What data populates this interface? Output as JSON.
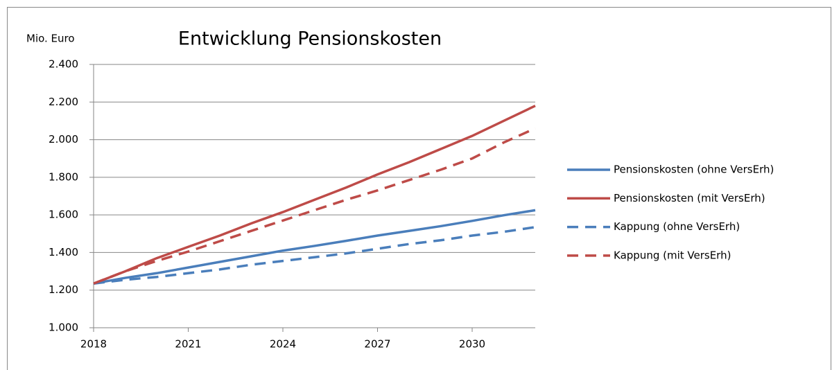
{
  "chart_data": {
    "type": "line",
    "title": "Entwicklung Pensionskosten",
    "y_label": "Mio. Euro",
    "x": [
      2018,
      2019,
      2020,
      2021,
      2022,
      2023,
      2024,
      2025,
      2026,
      2027,
      2028,
      2029,
      2030,
      2031,
      2032
    ],
    "series": [
      {
        "name": "Pensionskosten (ohne VersErh)",
        "color": "#4a7ebb",
        "dash": false,
        "values": [
          1235,
          1265,
          1290,
          1320,
          1350,
          1380,
          1410,
          1435,
          1462,
          1490,
          1515,
          1540,
          1568,
          1598,
          1625
        ]
      },
      {
        "name": "Pensionskosten (mit VersErh)",
        "color": "#be4b48",
        "dash": false,
        "values": [
          1235,
          1300,
          1370,
          1430,
          1490,
          1555,
          1615,
          1680,
          1745,
          1815,
          1880,
          1950,
          2020,
          2100,
          2180
        ]
      },
      {
        "name": "Kappung (ohne VersErh)",
        "color": "#4a7ebb",
        "dash": true,
        "values": [
          1235,
          1255,
          1270,
          1290,
          1310,
          1335,
          1355,
          1375,
          1395,
          1420,
          1445,
          1465,
          1490,
          1510,
          1535
        ]
      },
      {
        "name": "Kappung (mit VersErh)",
        "color": "#be4b48",
        "dash": true,
        "values": [
          1235,
          1300,
          1355,
          1405,
          1460,
          1515,
          1570,
          1625,
          1680,
          1730,
          1785,
          1840,
          1900,
          1985,
          2060
        ]
      }
    ],
    "xlim": [
      2018,
      2032
    ],
    "xticks": [
      2018,
      2021,
      2024,
      2027,
      2030
    ],
    "ylim": [
      1000,
      2400
    ],
    "yticks": [
      {
        "value": 1000,
        "label": "1.000"
      },
      {
        "value": 1200,
        "label": "1.200"
      },
      {
        "value": 1400,
        "label": "1.400"
      },
      {
        "value": 1600,
        "label": "1.600"
      },
      {
        "value": 1800,
        "label": "1.800"
      },
      {
        "value": 2000,
        "label": "2.000"
      },
      {
        "value": 2200,
        "label": "2.200"
      },
      {
        "value": 2400,
        "label": "2.400"
      }
    ],
    "grid": true,
    "legend": "right"
  }
}
